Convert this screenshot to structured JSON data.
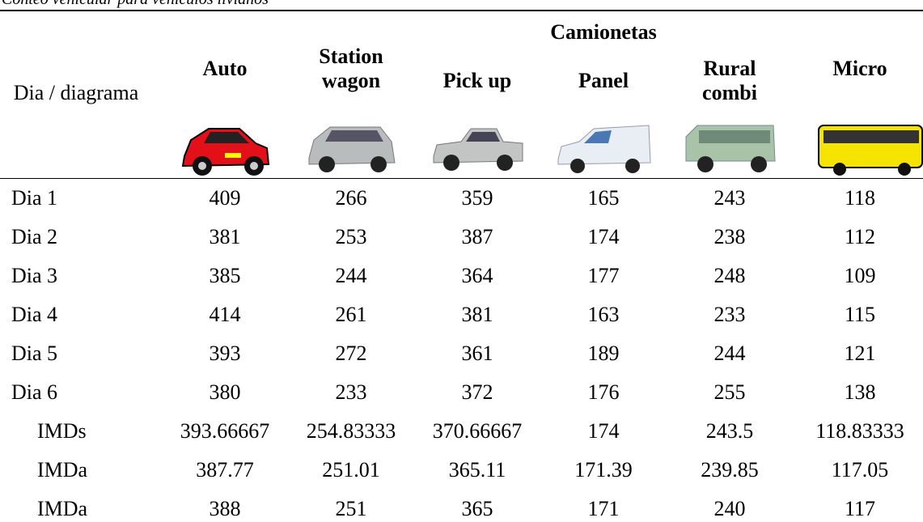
{
  "caption": "Conteo vehicular para vehículos livianos",
  "header": {
    "row_label": "Dia / diagrama",
    "group": "Camionetas",
    "columns": [
      "Auto",
      "Station wagon",
      "Pick up",
      "Panel",
      "Rural combi",
      "Micro"
    ]
  },
  "table": {
    "rows": [
      [
        "Dia 1",
        "409",
        "266",
        "359",
        "165",
        "243",
        "118"
      ],
      [
        "Dia 2",
        "381",
        "253",
        "387",
        "174",
        "238",
        "112"
      ],
      [
        "Dia 3",
        "385",
        "244",
        "364",
        "177",
        "248",
        "109"
      ],
      [
        "Dia 4",
        "414",
        "261",
        "381",
        "163",
        "233",
        "115"
      ],
      [
        "Dia 5",
        "393",
        "272",
        "361",
        "189",
        "244",
        "121"
      ],
      [
        "Dia 6",
        "380",
        "233",
        "372",
        "176",
        "255",
        "138"
      ],
      [
        "IMDs",
        "393.66667",
        "254.83333",
        "370.66667",
        "174",
        "243.5",
        "118.83333"
      ],
      [
        "IMDa",
        "387.77",
        "251.01",
        "365.11",
        "171.39",
        "239.85",
        "117.05"
      ],
      [
        "IMDa",
        "388",
        "251",
        "365",
        "171",
        "240",
        "117"
      ]
    ]
  }
}
